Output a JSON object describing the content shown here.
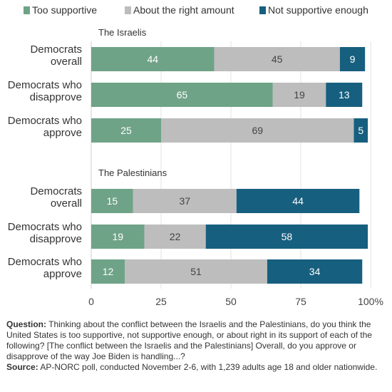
{
  "chart_data": {
    "type": "bar",
    "orientation": "horizontal",
    "stacked": true,
    "legend_position": "top",
    "xlim": [
      0,
      100
    ],
    "x_ticks": [
      "0",
      "25",
      "50",
      "75",
      "100%"
    ],
    "grid": true,
    "series": [
      {
        "name": "Too supportive",
        "color": "#6fa387"
      },
      {
        "name": "About the right amount",
        "color": "#bdbdbd"
      },
      {
        "name": "Not supportive enough",
        "color": "#175f7f"
      }
    ],
    "groups": [
      {
        "title": "The Israelis",
        "rows": [
          {
            "label": [
              "Democrats",
              "overall"
            ],
            "values": [
              44,
              45,
              9
            ]
          },
          {
            "label": [
              "Democrats who",
              "disapprove"
            ],
            "values": [
              65,
              19,
              13
            ]
          },
          {
            "label": [
              "Democrats who",
              "approve"
            ],
            "values": [
              25,
              69,
              5
            ]
          }
        ]
      },
      {
        "title": "The Palestinians",
        "rows": [
          {
            "label": [
              "Democrats",
              "overall"
            ],
            "values": [
              15,
              37,
              44
            ]
          },
          {
            "label": [
              "Democrats who",
              "disapprove"
            ],
            "values": [
              19,
              22,
              58
            ]
          },
          {
            "label": [
              "Democrats who",
              "approve"
            ],
            "values": [
              12,
              51,
              34
            ]
          }
        ]
      }
    ]
  },
  "notes": {
    "question_label": "Question:",
    "question_text": "Thinking about the conflict between the Israelis and the Palestinians, do you think the United States is too supportive, not supportive enough, or about right in its support of each of the following? [The conflict between the Israelis and the Palestinians] Overall, do you approve or disapprove of the way Joe Biden is handling...?",
    "source_label": "Source:",
    "source_text": "AP-NORC poll, conducted November 2-6, with 1,239 adults age 18 and older nationwide."
  }
}
